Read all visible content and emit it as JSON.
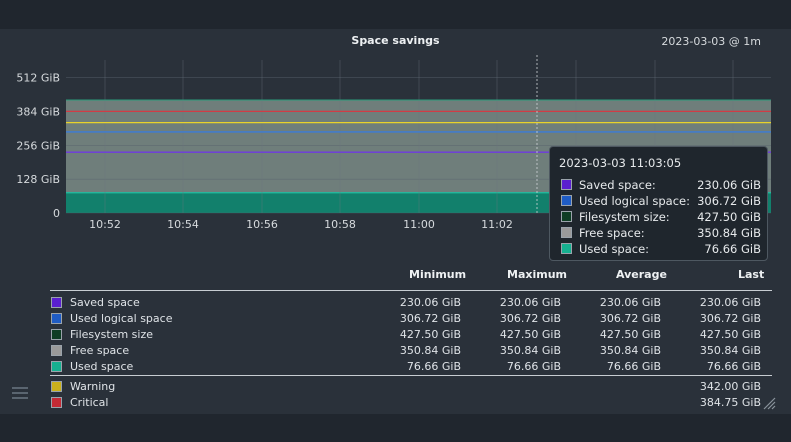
{
  "graph": {
    "title": "Space savings",
    "timestamp": "2023-03-03 @ 1m"
  },
  "chart_data": {
    "type": "area",
    "y_unit": "GiB",
    "y_ticks": [
      {
        "value": 512,
        "label": "512 GiB"
      },
      {
        "value": 384,
        "label": "384 GiB"
      },
      {
        "value": 256,
        "label": "256 GiB"
      },
      {
        "value": 128,
        "label": "128 GiB"
      },
      {
        "value": 0,
        "label": "0"
      }
    ],
    "x_ticks": [
      "10:52",
      "10:54",
      "10:56",
      "10:58",
      "11:00",
      "11:02"
    ],
    "series": [
      {
        "name": "Filesystem size",
        "value": 427.5,
        "color": "#15402f",
        "style": "area"
      },
      {
        "name": "Free space",
        "value": 350.84,
        "color": "#7f8a88",
        "style": "area-stacked"
      },
      {
        "name": "Used space",
        "value": 76.66,
        "color": "#1cbfa0",
        "style": "area"
      },
      {
        "name": "Saved space",
        "value": 230.06,
        "color": "#6f3ae0",
        "style": "line"
      },
      {
        "name": "Used logical space",
        "value": 306.72,
        "color": "#3a7cd9",
        "style": "line"
      }
    ],
    "thresholds": [
      {
        "name": "Warning",
        "value": 342.0,
        "color": "#e8d22b"
      },
      {
        "name": "Critical",
        "value": 384.75,
        "color": "#e0353f"
      }
    ],
    "grid": true
  },
  "tooltip": {
    "time": "2023-03-03 11:03:05",
    "rows": [
      {
        "label": "Saved space:",
        "value": "230.06 GiB",
        "color": "#5a1fcf"
      },
      {
        "label": "Used logical space:",
        "value": "306.72 GiB",
        "color": "#1f5cc4"
      },
      {
        "label": "Filesystem size:",
        "value": "427.50 GiB",
        "color": "#0e3d24"
      },
      {
        "label": "Free space:",
        "value": "350.84 GiB",
        "color": "#9a9a9a"
      },
      {
        "label": "Used space:",
        "value": "76.66 GiB",
        "color": "#16b090"
      }
    ]
  },
  "legend": {
    "headers": {
      "min": "Minimum",
      "max": "Maximum",
      "avg": "Average",
      "last": "Last"
    },
    "rows": [
      {
        "label": "Saved space",
        "color": "#5a1fcf",
        "min": "230.06 GiB",
        "max": "230.06 GiB",
        "avg": "230.06 GiB",
        "last": "230.06 GiB"
      },
      {
        "label": "Used logical space",
        "color": "#1f5cc4",
        "min": "306.72 GiB",
        "max": "306.72 GiB",
        "avg": "306.72 GiB",
        "last": "306.72 GiB"
      },
      {
        "label": "Filesystem size",
        "color": "#0e3d24",
        "min": "427.50 GiB",
        "max": "427.50 GiB",
        "avg": "427.50 GiB",
        "last": "427.50 GiB"
      },
      {
        "label": "Free space",
        "color": "#9a9a9a",
        "min": "350.84 GiB",
        "max": "350.84 GiB",
        "avg": "350.84 GiB",
        "last": "350.84 GiB"
      },
      {
        "label": "Used space",
        "color": "#16b090",
        "min": "76.66 GiB",
        "max": "76.66 GiB",
        "avg": "76.66 GiB",
        "last": "76.66 GiB"
      }
    ],
    "thresholds": [
      {
        "label": "Warning",
        "color": "#c9b01c",
        "last": "342.00 GiB"
      },
      {
        "label": "Critical",
        "color": "#c42a35",
        "last": "384.75 GiB"
      }
    ]
  },
  "icons": {
    "menu": "hamburger-icon",
    "resize": "resize-handle-icon"
  }
}
